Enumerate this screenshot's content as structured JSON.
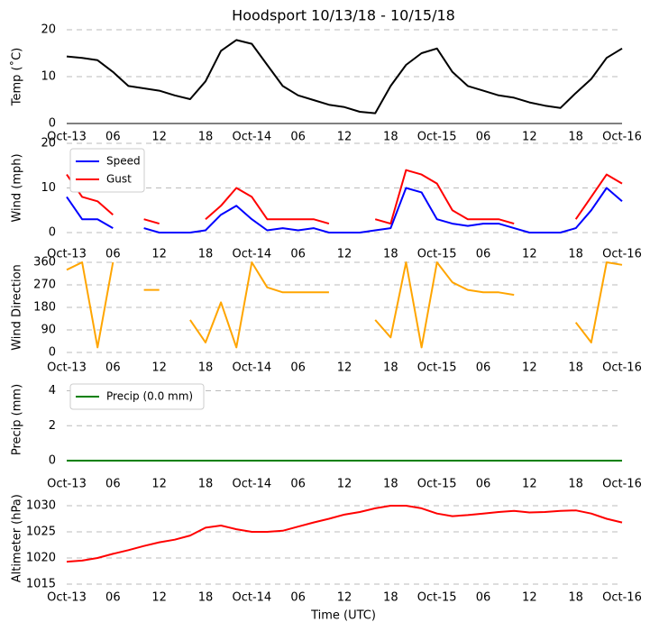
{
  "chart_data": [
    {
      "type": "line",
      "title": "Hoodsport 10/13/18 - 10/15/18",
      "ylabel": "Temp (˚C)",
      "x": [
        0,
        2,
        4,
        6,
        8,
        10,
        12,
        14,
        16,
        18,
        20,
        22,
        24,
        26,
        28,
        30,
        32,
        34,
        36,
        38,
        40,
        42,
        44,
        46,
        48,
        50,
        52,
        54,
        56,
        58,
        60,
        62,
        64,
        66,
        68,
        70,
        72
      ],
      "values": [
        14.3,
        14,
        13.5,
        11,
        8,
        7.5,
        7,
        6,
        5.2,
        9,
        15.5,
        17.8,
        17,
        12.5,
        8,
        6,
        5,
        4,
        3.5,
        2.5,
        2.2,
        8,
        12.5,
        15,
        16,
        11,
        8,
        7,
        6,
        5.5,
        4.5,
        3.8,
        3.3,
        6.5,
        9.5,
        14,
        16
      ],
      "color": "#000000",
      "xlim": [
        0,
        72
      ],
      "ylim": [
        0,
        20
      ],
      "yticks": [
        0,
        10,
        20
      ],
      "grid": true,
      "xticks": [
        {
          "value": 0,
          "label": "Oct-13"
        },
        {
          "value": 6,
          "label": "06"
        },
        {
          "value": 12,
          "label": "12"
        },
        {
          "value": 18,
          "label": "18"
        },
        {
          "value": 24,
          "label": "Oct-14"
        },
        {
          "value": 30,
          "label": "06"
        },
        {
          "value": 36,
          "label": "12"
        },
        {
          "value": 42,
          "label": "18"
        },
        {
          "value": 48,
          "label": "Oct-15"
        },
        {
          "value": 54,
          "label": "06"
        },
        {
          "value": 60,
          "label": "12"
        },
        {
          "value": 66,
          "label": "18"
        },
        {
          "value": 72,
          "label": "Oct-16"
        }
      ]
    },
    {
      "type": "line",
      "ylabel": "Wind (mph)",
      "legend": "upper left",
      "x": [
        0,
        2,
        4,
        6,
        8,
        10,
        12,
        14,
        16,
        18,
        20,
        22,
        24,
        26,
        28,
        30,
        32,
        34,
        36,
        38,
        40,
        42,
        44,
        46,
        48,
        50,
        52,
        54,
        56,
        58,
        60,
        62,
        64,
        66,
        68,
        70,
        72
      ],
      "series": [
        {
          "name": "Speed",
          "color": "#0000ff",
          "values": [
            8,
            3,
            3,
            1,
            null,
            1,
            0,
            0,
            0,
            0.5,
            4,
            6,
            3,
            0.5,
            1,
            0.5,
            1,
            0,
            0,
            0,
            0.5,
            1,
            10,
            9,
            3,
            2,
            1.5,
            2,
            2,
            1,
            0,
            0,
            0,
            1,
            5,
            10,
            7
          ]
        },
        {
          "name": "Gust",
          "color": "#ff0000",
          "values": [
            13,
            8,
            7,
            4,
            null,
            3,
            2,
            null,
            null,
            3,
            6,
            10,
            8,
            3,
            3,
            3,
            3,
            2,
            null,
            null,
            3,
            2,
            14,
            13,
            11,
            5,
            3,
            3,
            3,
            2,
            null,
            null,
            null,
            3,
            8,
            13,
            11
          ]
        }
      ],
      "xlim": [
        0,
        72
      ],
      "ylim": [
        0,
        20
      ],
      "yticks": [
        0,
        10,
        20
      ],
      "grid": true,
      "xticks": [
        {
          "value": 0,
          "label": "Oct-13"
        },
        {
          "value": 6,
          "label": "06"
        },
        {
          "value": 12,
          "label": "12"
        },
        {
          "value": 18,
          "label": "18"
        },
        {
          "value": 24,
          "label": "Oct-14"
        },
        {
          "value": 30,
          "label": "06"
        },
        {
          "value": 36,
          "label": "12"
        },
        {
          "value": 42,
          "label": "18"
        },
        {
          "value": 48,
          "label": "Oct-15"
        },
        {
          "value": 54,
          "label": "06"
        },
        {
          "value": 60,
          "label": "12"
        },
        {
          "value": 66,
          "label": "18"
        },
        {
          "value": 72,
          "label": "Oct-16"
        }
      ]
    },
    {
      "type": "line",
      "ylabel": "Wind Direction",
      "x": [
        0,
        2,
        4,
        6,
        8,
        10,
        12,
        14,
        16,
        18,
        20,
        22,
        24,
        26,
        28,
        30,
        32,
        34,
        36,
        38,
        40,
        42,
        44,
        46,
        48,
        50,
        52,
        54,
        56,
        58,
        60,
        62,
        64,
        66,
        68,
        70,
        72
      ],
      "values": [
        330,
        360,
        20,
        360,
        null,
        250,
        250,
        null,
        130,
        40,
        200,
        20,
        360,
        260,
        240,
        240,
        240,
        240,
        null,
        null,
        130,
        60,
        360,
        20,
        360,
        280,
        250,
        240,
        240,
        230,
        null,
        null,
        null,
        120,
        40,
        360,
        350
      ],
      "color": "#ffa500",
      "xlim": [
        0,
        72
      ],
      "ylim": [
        0,
        360
      ],
      "yticks": [
        0,
        90,
        180,
        270,
        360
      ],
      "grid": true,
      "xticks": [
        {
          "value": 0,
          "label": "Oct-13"
        },
        {
          "value": 6,
          "label": "06"
        },
        {
          "value": 12,
          "label": "12"
        },
        {
          "value": 18,
          "label": "18"
        },
        {
          "value": 24,
          "label": "Oct-14"
        },
        {
          "value": 30,
          "label": "06"
        },
        {
          "value": 36,
          "label": "12"
        },
        {
          "value": 42,
          "label": "18"
        },
        {
          "value": 48,
          "label": "Oct-15"
        },
        {
          "value": 54,
          "label": "06"
        },
        {
          "value": 60,
          "label": "12"
        },
        {
          "value": 66,
          "label": "18"
        },
        {
          "value": 72,
          "label": "Oct-16"
        }
      ]
    },
    {
      "type": "line",
      "ylabel": "Precip (mm)",
      "legend": "upper left",
      "x": [
        0,
        2,
        4,
        6,
        8,
        10,
        12,
        14,
        16,
        18,
        20,
        22,
        24,
        26,
        28,
        30,
        32,
        34,
        36,
        38,
        40,
        42,
        44,
        46,
        48,
        50,
        52,
        54,
        56,
        58,
        60,
        62,
        64,
        66,
        68,
        70,
        72
      ],
      "series": [
        {
          "name": "Precip (0.0 mm)",
          "color": "#008000",
          "values": [
            0,
            0,
            0,
            0,
            0,
            0,
            0,
            0,
            0,
            0,
            0,
            0,
            0,
            0,
            0,
            0,
            0,
            0,
            0,
            0,
            0,
            0,
            0,
            0,
            0,
            0,
            0,
            0,
            0,
            0,
            0,
            0,
            0,
            0,
            0,
            0,
            0
          ]
        }
      ],
      "xlim": [
        0,
        72
      ],
      "ylim": [
        0,
        4.7
      ],
      "yticks": [
        0,
        2,
        4
      ],
      "grid": true,
      "xticks": [
        {
          "value": 0,
          "label": "Oct-13"
        },
        {
          "value": 6,
          "label": "06"
        },
        {
          "value": 12,
          "label": "12"
        },
        {
          "value": 18,
          "label": "18"
        },
        {
          "value": 24,
          "label": "Oct-14"
        },
        {
          "value": 30,
          "label": "06"
        },
        {
          "value": 36,
          "label": "12"
        },
        {
          "value": 42,
          "label": "18"
        },
        {
          "value": 48,
          "label": "Oct-15"
        },
        {
          "value": 54,
          "label": "06"
        },
        {
          "value": 60,
          "label": "12"
        },
        {
          "value": 66,
          "label": "18"
        },
        {
          "value": 72,
          "label": "Oct-16"
        }
      ]
    },
    {
      "type": "line",
      "ylabel": "Altimeter (hPa)",
      "xlabel": "Time (UTC)",
      "x": [
        0,
        2,
        4,
        6,
        8,
        10,
        12,
        14,
        16,
        18,
        20,
        22,
        24,
        26,
        28,
        30,
        32,
        34,
        36,
        38,
        40,
        42,
        44,
        46,
        48,
        50,
        52,
        54,
        56,
        58,
        60,
        62,
        64,
        66,
        68,
        70,
        72
      ],
      "values": [
        1019.3,
        1019.5,
        1020,
        1020.8,
        1021.5,
        1022.3,
        1023,
        1023.5,
        1024.3,
        1025.8,
        1026.2,
        1025.5,
        1025,
        1025,
        1025.2,
        1026,
        1026.8,
        1027.5,
        1028.3,
        1028.8,
        1029.5,
        1030,
        1030,
        1029.5,
        1028.5,
        1028,
        1028.2,
        1028.5,
        1028.8,
        1029,
        1028.7,
        1028.8,
        1029,
        1029.1,
        1028.5,
        1027.5,
        1026.8
      ],
      "color": "#ff0000",
      "xlim": [
        0,
        72
      ],
      "ylim": [
        1015,
        1032.5
      ],
      "yticks": [
        1015,
        1020,
        1025,
        1030
      ],
      "grid": true,
      "xticks": [
        {
          "value": 0,
          "label": "Oct-13"
        },
        {
          "value": 6,
          "label": "06"
        },
        {
          "value": 12,
          "label": "12"
        },
        {
          "value": 18,
          "label": "18"
        },
        {
          "value": 24,
          "label": "Oct-14"
        },
        {
          "value": 30,
          "label": "06"
        },
        {
          "value": 36,
          "label": "12"
        },
        {
          "value": 42,
          "label": "18"
        },
        {
          "value": 48,
          "label": "Oct-15"
        },
        {
          "value": 54,
          "label": "06"
        },
        {
          "value": 60,
          "label": "12"
        },
        {
          "value": 66,
          "label": "18"
        },
        {
          "value": 72,
          "label": "Oct-16"
        }
      ]
    }
  ]
}
